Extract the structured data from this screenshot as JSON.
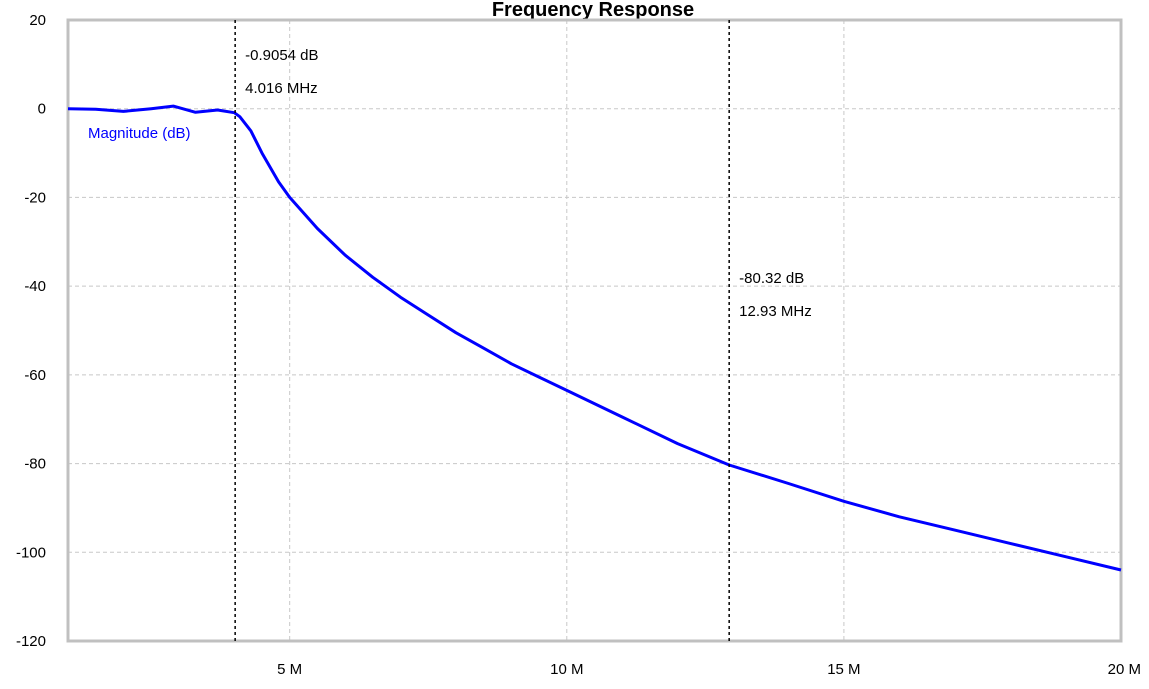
{
  "chart_data": {
    "type": "line",
    "title": "Frequency Response",
    "xlabel": "",
    "ylabel": "",
    "xlim": [
      1000000,
      20000000
    ],
    "ylim": [
      -120,
      20
    ],
    "grid": true,
    "x_ticks": [
      {
        "value": 5000000,
        "label": "5 M"
      },
      {
        "value": 10000000,
        "label": "10 M"
      },
      {
        "value": 15000000,
        "label": "15 M"
      },
      {
        "value": 20000000,
        "label": "20 M"
      }
    ],
    "y_ticks": [
      {
        "value": 20,
        "label": "20"
      },
      {
        "value": 0,
        "label": "0"
      },
      {
        "value": -20,
        "label": "-20"
      },
      {
        "value": -40,
        "label": "-40"
      },
      {
        "value": -60,
        "label": "-60"
      },
      {
        "value": -80,
        "label": "-80"
      },
      {
        "value": -100,
        "label": "-100"
      },
      {
        "value": -120,
        "label": "-120"
      }
    ],
    "series": [
      {
        "name": "Magnitude (dB)",
        "color": "#0000ff",
        "x": [
          1000000,
          1500000,
          2000000,
          2500000,
          2900000,
          3300000,
          3700000,
          4000000,
          4100000,
          4300000,
          4500000,
          4800000,
          5000000,
          5500000,
          6000000,
          6500000,
          7000000,
          7500000,
          8000000,
          8500000,
          9000000,
          9500000,
          10000000,
          11000000,
          12000000,
          12930000,
          14000000,
          15000000,
          16000000,
          17000000,
          18000000,
          19000000,
          20000000
        ],
        "y": [
          0,
          -0.1,
          -0.6,
          0.0,
          0.6,
          -0.8,
          -0.3,
          -0.9054,
          -1.8,
          -5.0,
          -10.0,
          -16.5,
          -20.0,
          -27.0,
          -33.0,
          -38.0,
          -42.5,
          -46.5,
          -50.5,
          -54.0,
          -57.5,
          -60.5,
          -63.5,
          -69.5,
          -75.5,
          -80.32,
          -84.5,
          -88.5,
          -92.0,
          -95.0,
          -98.0,
          -101.0,
          -104.0
        ]
      }
    ],
    "cursors": [
      {
        "x": 4016000,
        "db_text": "-0.9054 dB",
        "freq_text": "4.016 MHz"
      },
      {
        "x": 12930000,
        "db_text": "-80.32 dB",
        "freq_text": "12.93 MHz"
      }
    ]
  }
}
